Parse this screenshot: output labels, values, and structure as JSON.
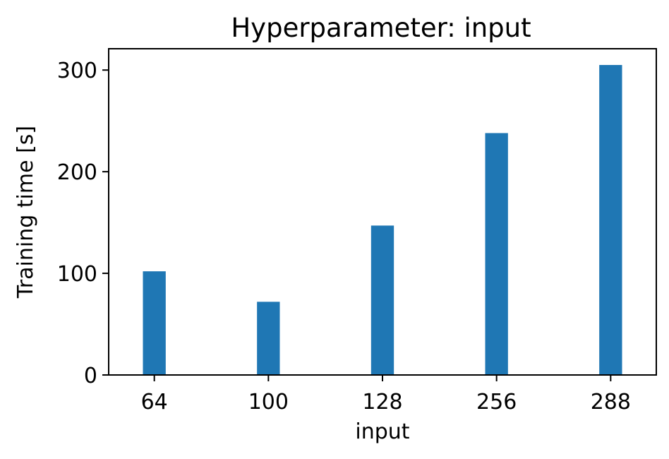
{
  "chart_data": {
    "type": "bar",
    "title": "Hyperparameter: input",
    "xlabel": "input",
    "ylabel": "Training time [s]",
    "categories": [
      "64",
      "100",
      "128",
      "256",
      "288"
    ],
    "values": [
      102,
      72,
      147,
      238,
      305
    ],
    "ylim": [
      0,
      321
    ],
    "yticks": [
      0,
      100,
      200,
      300
    ],
    "bar_color": "#1f77b4",
    "grid": false,
    "legend": "none"
  }
}
